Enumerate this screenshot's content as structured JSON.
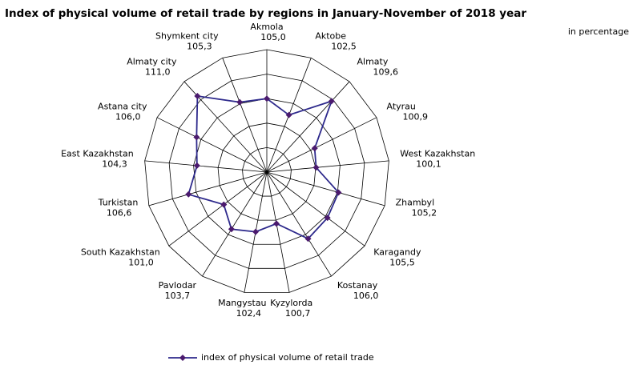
{
  "chart_data": {
    "type": "radar",
    "title": "Index of physical volume of retail trade by regions in January-November  of 2018 year",
    "subtitle": "in percentage",
    "categories": [
      "Akmola",
      "Aktobe",
      "Almaty",
      "Atyrau",
      "West Kazakhstan",
      "Zhambyl",
      "Karagandy",
      "Kostanay",
      "Kyzylorda",
      "Mangystau",
      "Pavlodar",
      "South Kazakhstan",
      "Turkistan",
      "East Kazakhstan",
      "Astana city",
      "Almaty city",
      "Shymkent city"
    ],
    "series": [
      {
        "name": "index of physical volume of retail trade",
        "color": "#2e2a8c",
        "values": [
          105.0,
          102.5,
          109.6,
          100.9,
          100.1,
          105.2,
          105.5,
          106.0,
          100.7,
          102.4,
          103.7,
          101.0,
          106.6,
          104.3,
          106.0,
          111.0,
          105.3
        ],
        "value_labels": [
          "105,0",
          "102,5",
          "109,6",
          "100,9",
          "100,1",
          "105,2",
          "105,5",
          "106,0",
          "100,7",
          "102,4",
          "103,7",
          "101,0",
          "106,6",
          "104,3",
          "106,0",
          "111,0",
          "105,3"
        ]
      }
    ],
    "rlim": [
      90,
      115
    ],
    "rticks": [
      90,
      95,
      100,
      105,
      110,
      115
    ],
    "grid": true,
    "legend": "bottom"
  }
}
